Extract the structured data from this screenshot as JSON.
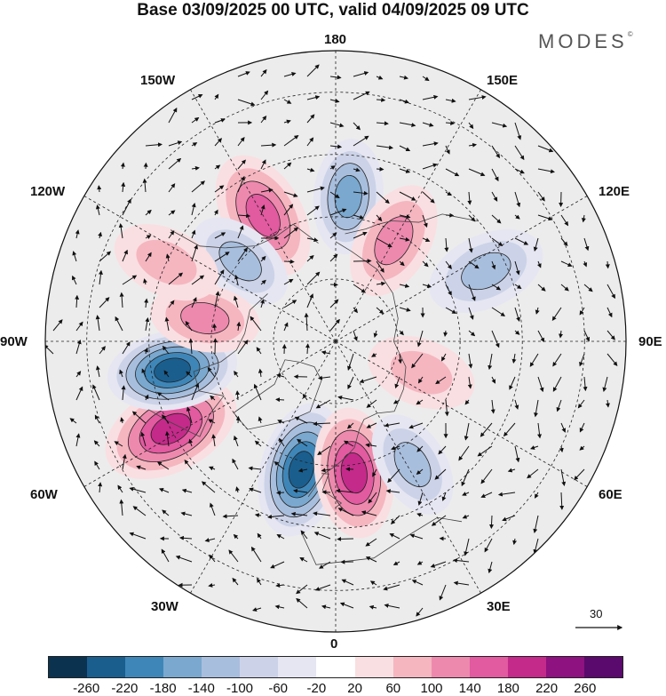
{
  "title": "Base 03/09/2025 00 UTC, valid 04/09/2025 09 UTC",
  "brand": "MODES",
  "brand_mark": "©",
  "longitude_labels": {
    "n180": "180",
    "w150": "150W",
    "e150": "150E",
    "w120": "120W",
    "e120": "120E",
    "w90": "90W",
    "e90": "90E",
    "w60": "60W",
    "e60": "60E",
    "w30": "30W",
    "e30": "30E",
    "s0": "0"
  },
  "wind_reference_vector": {
    "value": "30"
  },
  "colorbar": {
    "colors": [
      "#0b3350",
      "#1a5e8e",
      "#3f86b8",
      "#7aa8cf",
      "#a8bedd",
      "#ccd3e8",
      "#e6e6f2",
      "#ffffff",
      "#f9dfe1",
      "#f5b6c0",
      "#ee89ae",
      "#e25aa0",
      "#c42a8a",
      "#8e1280",
      "#5a0a6c"
    ],
    "ticks": [
      "-260",
      "-220",
      "-180",
      "-140",
      "-100",
      "-60",
      "-20",
      "20",
      "60",
      "100",
      "140",
      "180",
      "220",
      "260"
    ]
  },
  "anomaly_centers": [
    {
      "id": "atl-pos",
      "sign": "positive",
      "value": 200,
      "lon": -62,
      "lat": 45,
      "size": 1.2
    },
    {
      "id": "atl-neg",
      "sign": "negative",
      "value": -250,
      "lon": -15,
      "lat": 58,
      "size": 1.15
    },
    {
      "id": "eur-pos",
      "sign": "positive",
      "value": 210,
      "lon": 8,
      "lat": 58,
      "size": 1.1
    },
    {
      "id": "eur-neg",
      "sign": "negative",
      "value": -110,
      "lon": 32,
      "lat": 55,
      "size": 0.9
    },
    {
      "id": "can-neg",
      "sign": "negative",
      "value": -230,
      "lon": -80,
      "lat": 50,
      "size": 1.1
    },
    {
      "id": "pac-neg",
      "sign": "negative",
      "value": -170,
      "lon": 175,
      "lat": 55,
      "size": 0.95
    },
    {
      "id": "pac-pos",
      "sign": "positive",
      "value": 170,
      "lon": -150,
      "lat": 55,
      "size": 1.1
    },
    {
      "id": "ak-neg",
      "sign": "negative",
      "value": -110,
      "lon": -130,
      "lat": 60,
      "size": 0.9
    },
    {
      "id": "sib-pos",
      "sign": "positive",
      "value": 130,
      "lon": 150,
      "lat": 62,
      "size": 1.0
    },
    {
      "id": "sib-neg",
      "sign": "negative",
      "value": -100,
      "lon": 115,
      "lat": 50,
      "size": 1.0
    },
    {
      "id": "rus-pos",
      "sign": "positive",
      "value": 80,
      "lon": 70,
      "lat": 68,
      "size": 0.9
    },
    {
      "id": "nam-pos",
      "sign": "positive",
      "value": 120,
      "lon": -100,
      "lat": 58,
      "size": 0.9
    },
    {
      "id": "nwpos",
      "sign": "positive",
      "value": 80,
      "lon": -115,
      "lat": 45,
      "size": 0.9
    }
  ]
}
